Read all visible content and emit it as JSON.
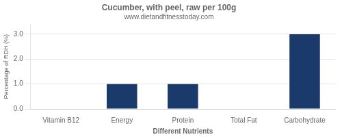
{
  "chart_data": {
    "type": "bar",
    "title": "Cucumber, with peel, raw per 100g",
    "subtitle": "www.dietandfitnesstoday.com",
    "xlabel": "Different Nutrients",
    "ylabel": "Percentage of RDH (%)",
    "categories": [
      "Vitamin B12",
      "Energy",
      "Protein",
      "Total Fat",
      "Carbohydrate"
    ],
    "values": [
      0.0,
      1.0,
      1.0,
      0.0,
      3.0
    ],
    "color": "#1a3a6b",
    "ylim": [
      0,
      3.4
    ],
    "yticks": [
      {
        "value": 0,
        "label": "0.0"
      },
      {
        "value": 1,
        "label": "1.0"
      },
      {
        "value": 2,
        "label": "2.0"
      },
      {
        "value": 3,
        "label": "3.0"
      }
    ],
    "grid": "y"
  }
}
